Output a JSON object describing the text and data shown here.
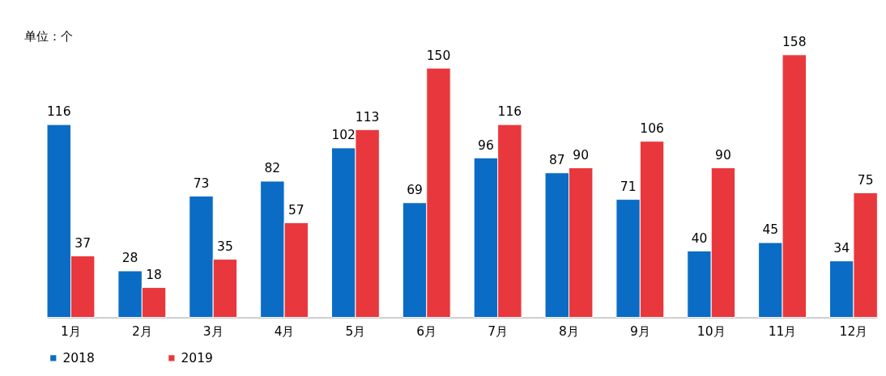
{
  "chart_data": {
    "type": "bar",
    "ylabel": "单位：个",
    "categories": [
      "1月",
      "2月",
      "3月",
      "4月",
      "5月",
      "6月",
      "7月",
      "8月",
      "9月",
      "10月",
      "11月",
      "12月"
    ],
    "series": [
      {
        "name": "2018",
        "color": "#0a6cc4",
        "values": [
          116,
          28,
          73,
          82,
          102,
          69,
          96,
          87,
          71,
          40,
          45,
          34
        ]
      },
      {
        "name": "2019",
        "color": "#e8383d",
        "values": [
          37,
          18,
          35,
          57,
          113,
          150,
          116,
          90,
          106,
          90,
          158,
          75
        ]
      }
    ],
    "data_labels": true,
    "legend": "bottom",
    "grid": false
  }
}
